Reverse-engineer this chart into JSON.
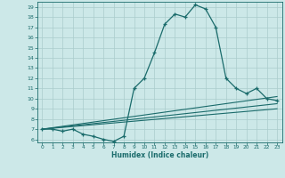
{
  "title": "",
  "xlabel": "Humidex (Indice chaleur)",
  "ylabel": "",
  "bg_color": "#cce8e8",
  "grid_color": "#aacccc",
  "line_color": "#1a6b6b",
  "xlim": [
    -0.5,
    23.5
  ],
  "ylim": [
    5.7,
    19.5
  ],
  "xticks": [
    0,
    1,
    2,
    3,
    4,
    5,
    6,
    7,
    8,
    9,
    10,
    11,
    12,
    13,
    14,
    15,
    16,
    17,
    18,
    19,
    20,
    21,
    22,
    23
  ],
  "yticks": [
    6,
    7,
    8,
    9,
    10,
    11,
    12,
    13,
    14,
    15,
    16,
    17,
    18,
    19
  ],
  "main_line_x": [
    0,
    1,
    2,
    3,
    4,
    5,
    6,
    7,
    8,
    9,
    10,
    11,
    12,
    13,
    14,
    15,
    16,
    17,
    18,
    19,
    20,
    21,
    22,
    23
  ],
  "main_line_y": [
    7.0,
    7.0,
    6.8,
    7.0,
    6.5,
    6.3,
    6.0,
    5.8,
    6.3,
    11.0,
    12.0,
    14.5,
    17.3,
    18.3,
    18.0,
    19.2,
    18.8,
    17.0,
    12.0,
    11.0,
    10.5,
    11.0,
    10.0,
    9.8
  ],
  "line2_x": [
    0,
    23
  ],
  "line2_y": [
    7.0,
    10.2
  ],
  "line3_x": [
    0,
    23
  ],
  "line3_y": [
    7.0,
    9.5
  ],
  "line4_x": [
    0,
    23
  ],
  "line4_y": [
    7.0,
    9.0
  ]
}
